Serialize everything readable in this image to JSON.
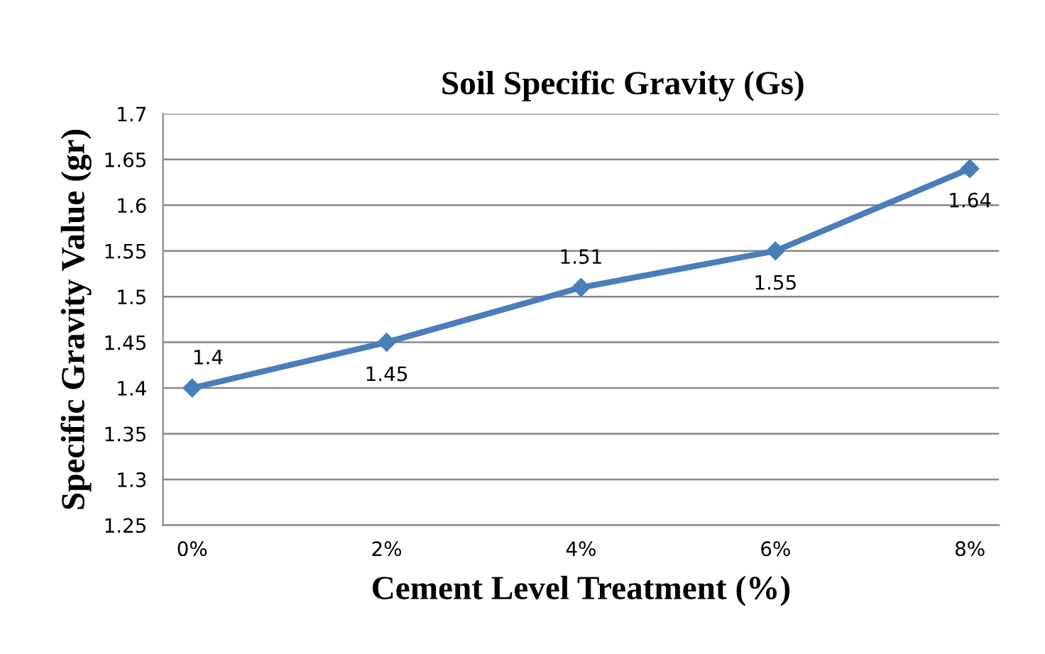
{
  "chart_data": {
    "type": "line",
    "title": "Soil Specific Gravity (Gs)",
    "xlabel": "Cement Level Treatment (%)",
    "ylabel": "Specific Gravity Value (gr)",
    "categories": [
      "0%",
      "2%",
      "4%",
      "6%",
      "8%"
    ],
    "series": [
      {
        "color": "#4a7ebb",
        "values": [
          1.4,
          1.45,
          1.51,
          1.55,
          1.64
        ]
      }
    ],
    "ylim": [
      1.25,
      1.7
    ],
    "yticks": [
      1.25,
      1.3,
      1.35,
      1.4,
      1.45,
      1.5,
      1.55,
      1.6,
      1.65,
      1.7
    ],
    "grid": "y",
    "marker": "diamond",
    "line_style": "solid",
    "data_labels": true,
    "legend": false
  }
}
